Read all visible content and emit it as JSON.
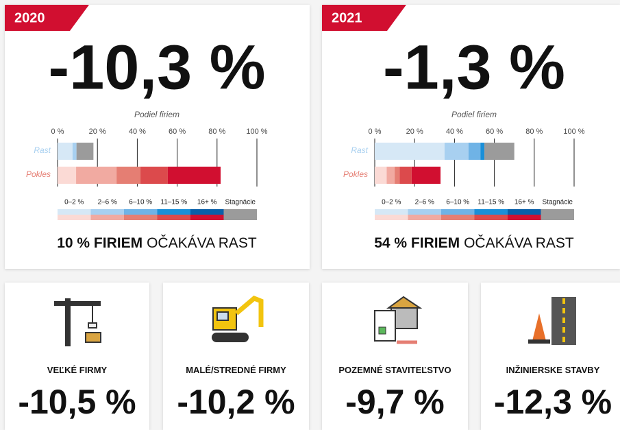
{
  "panels": [
    {
      "year": "2020",
      "headline": "-10,3 %",
      "axis_label": "Podiel firiem",
      "xlim": [
        0,
        100
      ],
      "xticks": [
        {
          "value": 0,
          "label": "0 %"
        },
        {
          "value": 20,
          "label": "20 %"
        },
        {
          "value": 40,
          "label": "40 %"
        },
        {
          "value": 60,
          "label": "60 %"
        },
        {
          "value": 80,
          "label": "80 %"
        },
        {
          "value": 100,
          "label": "100 %"
        }
      ],
      "rows": [
        {
          "name": "Rast",
          "values": [
            7.5,
            2,
            0,
            0,
            0,
            8.5
          ]
        },
        {
          "name": "Pokles",
          "values": [
            9.3,
            20.3,
            12,
            13.7,
            26.5,
            0
          ]
        }
      ],
      "footer_bold": "10 % FIRIEM",
      "footer_rest": "OČAKÁVA RAST"
    },
    {
      "year": "2021",
      "headline": "-1,3 %",
      "axis_label": "Podiel firiem",
      "xlim": [
        0,
        100
      ],
      "xticks": [
        {
          "value": 0,
          "label": "0 %"
        },
        {
          "value": 20,
          "label": "20 %"
        },
        {
          "value": 40,
          "label": "40 %"
        },
        {
          "value": 60,
          "label": "60 %"
        },
        {
          "value": 80,
          "label": "80 %"
        },
        {
          "value": 100,
          "label": "100 %"
        }
      ],
      "rows": [
        {
          "name": "Rast",
          "values": [
            35,
            12,
            6,
            2,
            0,
            15
          ]
        },
        {
          "name": "Pokles",
          "values": [
            6,
            4,
            2.5,
            6,
            14.5,
            0
          ]
        }
      ],
      "footer_bold": "54 % FIRIEM",
      "footer_rest": "OČAKÁVA RAST"
    }
  ],
  "legend": [
    "0–2 %",
    "2–6 %",
    "6–10 %",
    "11–15 %",
    "16+ %",
    "Stagnácie"
  ],
  "rast_colors": [
    "#d6e8f6",
    "#a8d0f0",
    "#6fb3e6",
    "#1a8fd8",
    "#0a5fa8",
    "#9b9b9b"
  ],
  "pokles_colors": [
    "#fbdad5",
    "#f1aaa1",
    "#e57e73",
    "#dc4a4c",
    "#d10f30",
    "#9b9b9b"
  ],
  "cards": [
    {
      "label": "VEĽKÉ FIRMY",
      "value": "-10,5 %"
    },
    {
      "label": "MALÉ/STREDNÉ FIRMY",
      "value": "-10,2 %"
    },
    {
      "label": "POZEMNÉ STAVITEĽSTVO",
      "value": "-9,7 %"
    },
    {
      "label": "INŽINIERSKE STAVBY",
      "value": "-12,3 %"
    }
  ]
}
